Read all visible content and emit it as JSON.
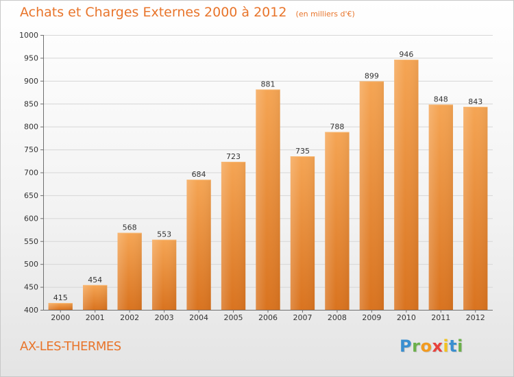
{
  "title": {
    "main": "Achats et Charges Externes 2000 à 2012",
    "unit": "(en milliers d'€)"
  },
  "location": "AX-LES-THERMES",
  "logo": {
    "text": "Proxiti",
    "letters": [
      "P",
      "r",
      "o",
      "x",
      "i",
      "t",
      "i"
    ],
    "colors": [
      "#3a8fd0",
      "#6bb04a",
      "#f29a1f",
      "#e8413c",
      "#f2c21f",
      "#3a8fd0",
      "#6bb04a"
    ]
  },
  "colors": {
    "bar_top": "#f5a554",
    "bar_bottom": "#d9731f",
    "accent": "#e8742a"
  },
  "chart_data": {
    "type": "bar",
    "categories": [
      "2000",
      "2001",
      "2002",
      "2003",
      "2004",
      "2005",
      "2006",
      "2007",
      "2008",
      "2009",
      "2010",
      "2011",
      "2012"
    ],
    "values": [
      415,
      454,
      568,
      553,
      684,
      723,
      881,
      735,
      788,
      899,
      946,
      848,
      843
    ],
    "ylim": [
      400,
      1000
    ],
    "yticks": [
      400,
      450,
      500,
      550,
      600,
      650,
      700,
      750,
      800,
      850,
      900,
      950,
      1000
    ],
    "grid": true,
    "title": "Achats et Charges Externes 2000 à 2012",
    "xlabel": "",
    "ylabel": ""
  }
}
